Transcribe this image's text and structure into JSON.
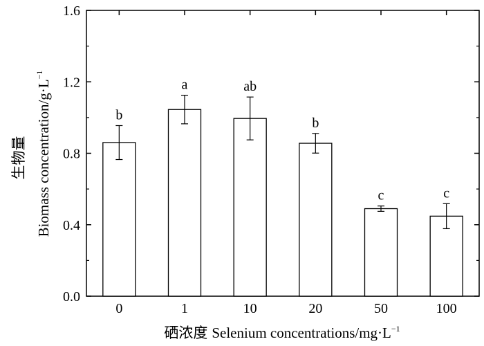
{
  "chart_data": {
    "type": "bar",
    "categories": [
      "0",
      "1",
      "10",
      "20",
      "50",
      "100"
    ],
    "values": [
      0.86,
      1.045,
      0.995,
      0.856,
      0.49,
      0.448
    ],
    "errors": [
      0.095,
      0.08,
      0.12,
      0.055,
      0.015,
      0.07
    ],
    "significance": [
      "b",
      "a",
      "ab",
      "b",
      "c",
      "c"
    ],
    "xlabel": {
      "zh": "硒浓度",
      "en": "Selenium concentrations/mg·L",
      "sup": "−1"
    },
    "ylabel": {
      "zh": "生物量",
      "en": "Biomass concentration/g·L",
      "sup": "−1"
    },
    "ylim": [
      0,
      1.6
    ],
    "yticks": [
      "0.0",
      "0.4",
      "0.8",
      "1.2",
      "1.6"
    ],
    "grid": false,
    "bar_fill": "#ffffff",
    "stroke_color": "#000000"
  }
}
